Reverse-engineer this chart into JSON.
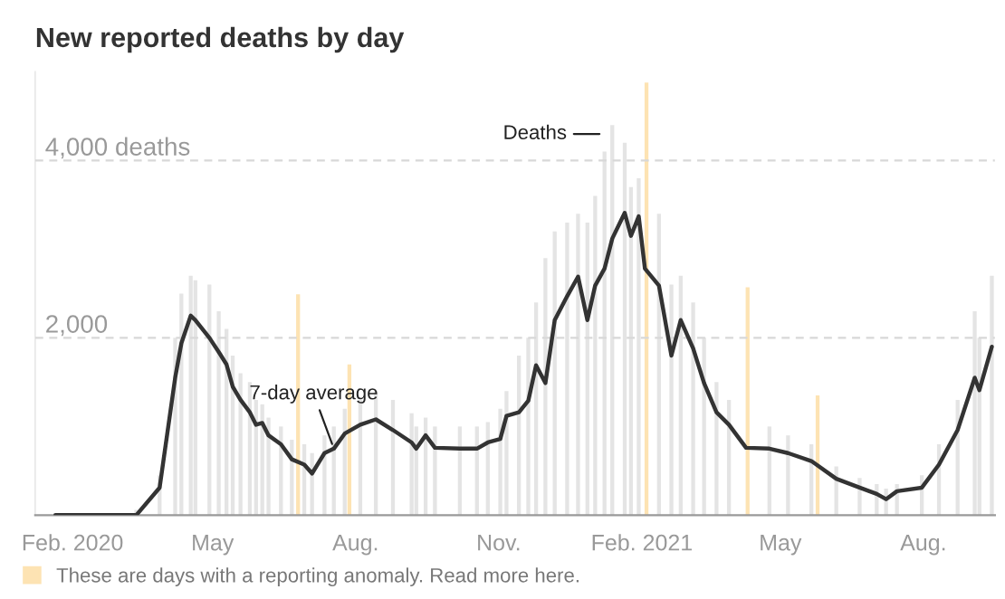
{
  "chart_data": {
    "type": "bar",
    "title": "New reported deaths by day",
    "xlim": [
      "2020-01-08",
      "2021-09-16"
    ],
    "xticks": [
      {
        "value": "2020-02-01",
        "label": "Feb. 2020"
      },
      {
        "value": "2020-05-01",
        "label": "May"
      },
      {
        "value": "2020-08-01",
        "label": "Aug."
      },
      {
        "value": "2020-11-01",
        "label": "Nov."
      },
      {
        "value": "2021-02-01",
        "label": "Feb. 2021"
      },
      {
        "value": "2021-05-01",
        "label": "May"
      },
      {
        "value": "2021-08-01",
        "label": "Aug."
      }
    ],
    "ylim": [
      0,
      5000
    ],
    "yticks": [
      {
        "value": 2000,
        "label": "2,000"
      },
      {
        "value": 4000,
        "label": "4,000 deaths"
      }
    ],
    "grid": "y",
    "legend": "bottom left",
    "series": [
      {
        "color": "#e4e4e4",
        "x": [
          "2020-03-13",
          "2020-03-28",
          "2020-04-07",
          "2020-04-11",
          "2020-04-17",
          "2020-04-20",
          "2020-04-29",
          "2020-05-05",
          "2020-05-10",
          "2020-05-14",
          "2020-05-19",
          "2020-05-25",
          "2020-05-29",
          "2020-06-02",
          "2020-06-06",
          "2020-06-14",
          "2020-06-21",
          "2020-06-29",
          "2020-07-04",
          "2020-07-12",
          "2020-07-18",
          "2020-07-25",
          "2020-08-04",
          "2020-08-14",
          "2020-08-25",
          "2020-09-06",
          "2020-09-09",
          "2020-09-15",
          "2020-09-21",
          "2020-10-07",
          "2020-10-18",
          "2020-10-25",
          "2020-11-02",
          "2020-11-06",
          "2020-11-14",
          "2020-11-20",
          "2020-11-25",
          "2020-12-01",
          "2020-12-07",
          "2020-12-15",
          "2020-12-22",
          "2020-12-28",
          "2021-01-02",
          "2021-01-08",
          "2021-01-13",
          "2021-01-21",
          "2021-01-25",
          "2021-01-30",
          "2021-02-12",
          "2021-02-20",
          "2021-02-26",
          "2021-03-06",
          "2021-03-13",
          "2021-03-21",
          "2021-03-29",
          "2021-04-09",
          "2021-04-24",
          "2021-05-06",
          "2021-05-21",
          "2021-06-06",
          "2021-06-21",
          "2021-07-02",
          "2021-07-08",
          "2021-07-15",
          "2021-07-31",
          "2021-08-11",
          "2021-08-23",
          "2021-09-03",
          "2021-09-06",
          "2021-09-14"
        ],
        "values": [
          60,
          450,
          2000,
          2500,
          2700,
          2650,
          2600,
          2300,
          2100,
          1800,
          1600,
          1500,
          1300,
          1250,
          1100,
          1000,
          850,
          800,
          700,
          900,
          1000,
          1200,
          1300,
          1400,
          1300,
          1150,
          1000,
          1100,
          1000,
          1000,
          1000,
          1050,
          1200,
          1400,
          1800,
          2000,
          2400,
          2900,
          3200,
          3300,
          3400,
          3300,
          3600,
          4100,
          4400,
          4200,
          3700,
          3800,
          3400,
          2600,
          2700,
          2400,
          2000,
          1500,
          1300,
          null,
          1000,
          900,
          800,
          550,
          420,
          350,
          300,
          350,
          450,
          800,
          1300,
          2300,
          2000,
          2700
        ]
      },
      {
        "color": "#fde3b3",
        "name": "These are days with a reporting anomaly. Read more here.",
        "x": [
          "2020-06-25",
          "2020-07-28",
          "2021-02-04",
          "2021-04-10",
          "2021-05-25"
        ],
        "values": [
          2490,
          1700,
          4880,
          2570,
          1350
        ]
      },
      {
        "type": "line",
        "color": "#333333",
        "x": [
          "2020-01-21",
          "2020-03-13",
          "2020-03-28",
          "2020-04-07",
          "2020-04-11",
          "2020-04-17",
          "2020-04-20",
          "2020-04-29",
          "2020-05-05",
          "2020-05-10",
          "2020-05-14",
          "2020-05-19",
          "2020-05-25",
          "2020-05-29",
          "2020-06-02",
          "2020-06-06",
          "2020-06-14",
          "2020-06-21",
          "2020-06-29",
          "2020-07-04",
          "2020-07-12",
          "2020-07-18",
          "2020-07-25",
          "2020-08-04",
          "2020-08-14",
          "2020-08-25",
          "2020-09-06",
          "2020-09-09",
          "2020-09-15",
          "2020-09-21",
          "2020-10-07",
          "2020-10-18",
          "2020-10-25",
          "2020-11-02",
          "2020-11-06",
          "2020-11-14",
          "2020-11-20",
          "2020-11-25",
          "2020-12-01",
          "2020-12-07",
          "2020-12-15",
          "2020-12-22",
          "2020-12-28",
          "2021-01-02",
          "2021-01-08",
          "2021-01-13",
          "2021-01-21",
          "2021-01-25",
          "2021-01-30",
          "2021-02-03",
          "2021-02-12",
          "2021-02-20",
          "2021-02-26",
          "2021-03-06",
          "2021-03-13",
          "2021-03-21",
          "2021-03-29",
          "2021-04-09",
          "2021-04-24",
          "2021-05-06",
          "2021-05-21",
          "2021-06-06",
          "2021-06-21",
          "2021-07-02",
          "2021-07-08",
          "2021-07-15",
          "2021-07-31",
          "2021-08-11",
          "2021-08-23",
          "2021-09-03",
          "2021-09-06",
          "2021-09-14"
        ],
        "values": [
          0,
          0,
          310,
          1550,
          1940,
          2250,
          2200,
          2000,
          1840,
          1700,
          1450,
          1300,
          1160,
          1020,
          1040,
          900,
          800,
          630,
          570,
          470,
          700,
          750,
          920,
          1020,
          1080,
          960,
          820,
          750,
          900,
          760,
          750,
          750,
          820,
          860,
          1120,
          1160,
          1290,
          1690,
          1490,
          2200,
          2470,
          2690,
          2200,
          2590,
          2780,
          3120,
          3410,
          3150,
          3370,
          2780,
          2590,
          1800,
          2200,
          1880,
          1490,
          1160,
          1020,
          760,
          750,
          700,
          610,
          410,
          310,
          240,
          180,
          270,
          310,
          570,
          960,
          1550,
          1410,
          1900
        ]
      }
    ],
    "annotations": [
      {
        "text": "Deaths",
        "x": "2021-01-08",
        "y": 4300
      },
      {
        "text": "7-day average",
        "x": "2020-07-18",
        "y": 750
      }
    ]
  }
}
